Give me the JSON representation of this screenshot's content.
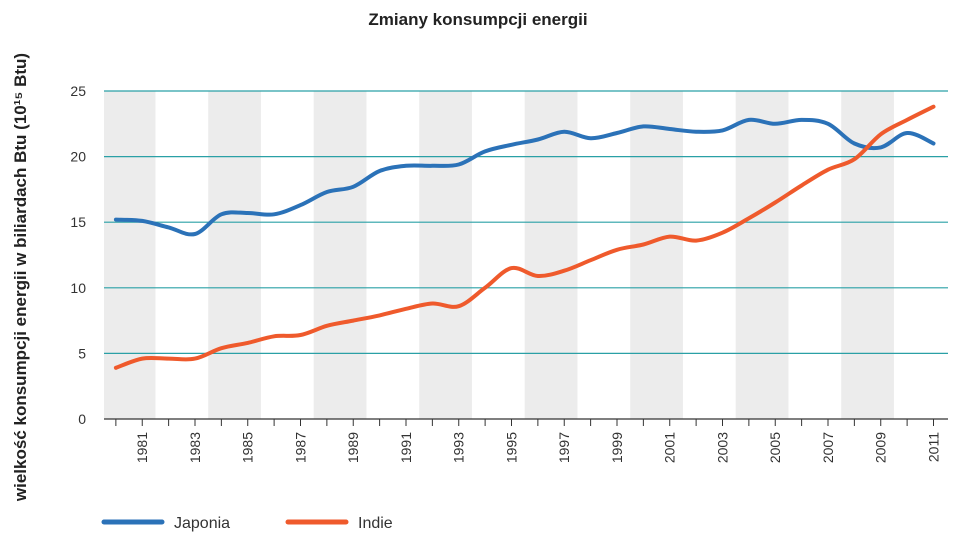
{
  "chart_data": {
    "type": "line",
    "title": "Zmiany konsumpcji energii",
    "ylabel": "wielkość konsumpcji energii w biliardach Btu (10¹⁵ Btu)",
    "xlabel": "",
    "ylim": [
      0,
      25
    ],
    "yticks": [
      "0",
      "5",
      "10",
      "15",
      "20",
      "25"
    ],
    "xlim": [
      1980,
      2011
    ],
    "xticks": [
      "1981",
      "1983",
      "1985",
      "1987",
      "1989",
      "1991",
      "1993",
      "1995",
      "1997",
      "1999",
      "2001",
      "2003",
      "2005",
      "2007",
      "2009",
      "2011"
    ],
    "grid": "horizontal",
    "legend_placement": "bottom-left",
    "series": [
      {
        "name": "Japonia",
        "color": "#2b72b8",
        "x": [
          1980,
          1981,
          1982,
          1983,
          1984,
          1985,
          1986,
          1987,
          1988,
          1989,
          1990,
          1991,
          1992,
          1993,
          1994,
          1995,
          1996,
          1997,
          1998,
          1999,
          2000,
          2001,
          2002,
          2003,
          2004,
          2005,
          2006,
          2007,
          2008,
          2009,
          2010,
          2011
        ],
        "y": [
          15.2,
          15.1,
          14.6,
          14.1,
          15.6,
          15.7,
          15.6,
          16.3,
          17.3,
          17.7,
          18.9,
          19.3,
          19.3,
          19.4,
          20.4,
          20.9,
          21.3,
          21.9,
          21.4,
          21.8,
          22.3,
          22.1,
          21.9,
          22.0,
          22.8,
          22.5,
          22.8,
          22.5,
          21.0,
          20.7,
          21.8,
          21.0
        ]
      },
      {
        "name": "Indie",
        "color": "#ef5a2c",
        "x": [
          1980,
          1981,
          1982,
          1983,
          1984,
          1985,
          1986,
          1987,
          1988,
          1989,
          1990,
          1991,
          1992,
          1993,
          1994,
          1995,
          1996,
          1997,
          1998,
          1999,
          2000,
          2001,
          2002,
          2003,
          2004,
          2005,
          2006,
          2007,
          2008,
          2009,
          2010,
          2011
        ],
        "y": [
          3.9,
          4.6,
          4.6,
          4.6,
          5.4,
          5.8,
          6.3,
          6.4,
          7.1,
          7.5,
          7.9,
          8.4,
          8.8,
          8.6,
          10.0,
          11.5,
          10.9,
          11.3,
          12.1,
          12.9,
          13.3,
          13.9,
          13.6,
          14.2,
          15.3,
          16.5,
          17.8,
          19.0,
          19.8,
          21.7,
          22.8,
          23.8
        ]
      }
    ]
  }
}
